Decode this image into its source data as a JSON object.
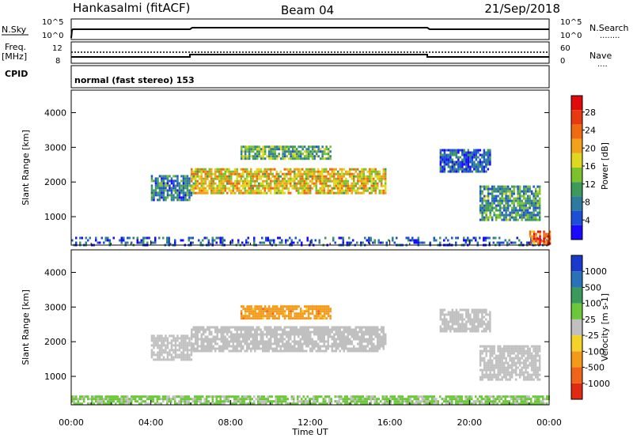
{
  "header": {
    "station": "Hankasalmi (fitACF)",
    "beam": "Beam 04",
    "date": "21/Sep/2018",
    "mode_text": "normal (fast stereo) 153"
  },
  "top_panels": {
    "nsky_label": "N.Sky",
    "nsearch_label": "N.Search",
    "freq_label_1": "Freq.",
    "freq_label_2": "[MHz]",
    "nave_label": "Nave",
    "cpid_label": "CPID",
    "nsky_ticks": [
      "10^5",
      "10^0"
    ],
    "nsearch_ticks": [
      "10^5",
      "10^0"
    ],
    "freq_ticks": [
      "12",
      "8"
    ],
    "nave_ticks": [
      "60",
      "0"
    ],
    "nsearch_key": "........",
    "nave_key": "...."
  },
  "chart_data": [
    {
      "type": "heatmap",
      "name": "power-panel",
      "xlabel": "",
      "ylabel": "Slant Range [km]",
      "xlim": [
        0,
        24
      ],
      "ylim": [
        180,
        4650
      ],
      "y_ticks": [
        1000,
        2000,
        3000,
        4000
      ],
      "colorbar": {
        "label": "Power [dB]",
        "ticks": [
          "4",
          "8",
          "12",
          "16",
          "20",
          "24",
          "28"
        ],
        "colors": [
          "#1a0aff",
          "#1d4fd6",
          "#2d7b9e",
          "#3d9a5a",
          "#7cc22c",
          "#e0d820",
          "#f2a21a",
          "#f06a14",
          "#e83a10",
          "#e00a0a"
        ]
      },
      "regions": [
        {
          "t": [
            0.0,
            24.0
          ],
          "r": [
            200,
            420
          ],
          "value": "low-noise"
        },
        {
          "t": [
            4.0,
            6.0
          ],
          "r": [
            1500,
            2200
          ],
          "value": 8
        },
        {
          "t": [
            6.0,
            15.8
          ],
          "r": [
            1700,
            2400
          ],
          "value": 18
        },
        {
          "t": [
            8.5,
            13.0
          ],
          "r": [
            2700,
            3050
          ],
          "value": 12
        },
        {
          "t": [
            18.5,
            21.0
          ],
          "r": [
            2300,
            2950
          ],
          "value": 6
        },
        {
          "t": [
            20.5,
            23.5
          ],
          "r": [
            900,
            1900
          ],
          "value": 10
        },
        {
          "t": [
            23.0,
            24.0
          ],
          "r": [
            200,
            600
          ],
          "value": 24
        }
      ]
    },
    {
      "type": "heatmap",
      "name": "velocity-panel",
      "xlabel": "Time UT",
      "ylabel": "Slant Range [km]",
      "xlim": [
        0,
        24
      ],
      "ylim": [
        180,
        4650
      ],
      "y_ticks": [
        1000,
        2000,
        3000,
        4000
      ],
      "x_ticks": [
        "00:00",
        "04:00",
        "08:00",
        "12:00",
        "16:00",
        "20:00",
        "00:00"
      ],
      "colorbar": {
        "label": "Velocity [m s-1]",
        "ticks": [
          "1000",
          "500",
          "100",
          "25",
          "-25",
          "-100",
          "-500",
          "-1000"
        ],
        "colors": [
          "#1a3acc",
          "#2a72b8",
          "#3a9a5c",
          "#6cc83a",
          "#c0c0c0",
          "#f4d22a",
          "#f49a1a",
          "#f0641a",
          "#e02a12"
        ]
      },
      "regions": [
        {
          "t": [
            0.0,
            24.0
          ],
          "r": [
            200,
            450
          ],
          "value": 40
        },
        {
          "t": [
            4.0,
            6.0
          ],
          "r": [
            1500,
            2200
          ],
          "value": 0
        },
        {
          "t": [
            6.0,
            15.8
          ],
          "r": [
            1700,
            2450
          ],
          "value": 0
        },
        {
          "t": [
            8.5,
            13.0
          ],
          "r": [
            2700,
            3050
          ],
          "value": -300
        },
        {
          "t": [
            18.5,
            21.0
          ],
          "r": [
            2300,
            2950
          ],
          "value": 0
        },
        {
          "t": [
            20.5,
            23.5
          ],
          "r": [
            900,
            1900
          ],
          "value": 0
        }
      ]
    }
  ]
}
